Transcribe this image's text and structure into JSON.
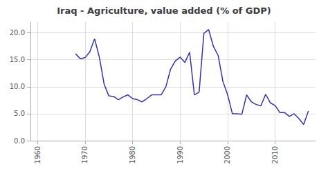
{
  "chart_data": {
    "type": "line",
    "title": "Iraq - Agriculture, value added (% of GDP)",
    "x": [
      1968,
      1969,
      1970,
      1971,
      1972,
      1973,
      1974,
      1975,
      1976,
      1977,
      1978,
      1979,
      1980,
      1981,
      1982,
      1983,
      1984,
      1985,
      1986,
      1987,
      1988,
      1989,
      1990,
      1991,
      1992,
      1993,
      1994,
      1995,
      1996,
      1997,
      1998,
      1999,
      2000,
      2001,
      2002,
      2003,
      2004,
      2005,
      2006,
      2007,
      2008,
      2009,
      2010,
      2011,
      2012,
      2013,
      2014,
      2015,
      2016,
      2017
    ],
    "values": [
      16.1,
      15.2,
      15.4,
      16.5,
      18.9,
      15.5,
      10.5,
      8.3,
      8.2,
      7.6,
      8.1,
      8.5,
      7.8,
      7.6,
      7.2,
      7.8,
      8.5,
      8.5,
      8.5,
      10.0,
      13.3,
      14.8,
      15.5,
      14.5,
      16.4,
      8.5,
      9.0,
      19.9,
      20.6,
      17.5,
      15.8,
      11.0,
      8.5,
      5.0,
      5.0,
      4.9,
      8.5,
      7.2,
      6.7,
      6.5,
      8.6,
      7.0,
      6.5,
      5.2,
      5.2,
      4.5,
      5.0,
      4.1,
      3.0,
      5.5
    ],
    "color": "#3333aa",
    "xlim": [
      1958.5,
      2018.5
    ],
    "xticks": [
      1960,
      1970,
      1980,
      1990,
      2000,
      2010
    ],
    "ylim": [
      0.0,
      22.0
    ],
    "yticks": [
      {
        "value": 0.0,
        "label": "0.0"
      },
      {
        "value": 5.0,
        "label": "5.0"
      },
      {
        "value": 10.0,
        "label": "10.0"
      },
      {
        "value": 15.0,
        "label": "15.0"
      },
      {
        "value": 20.0,
        "label": "20.0"
      }
    ],
    "grid": true
  }
}
